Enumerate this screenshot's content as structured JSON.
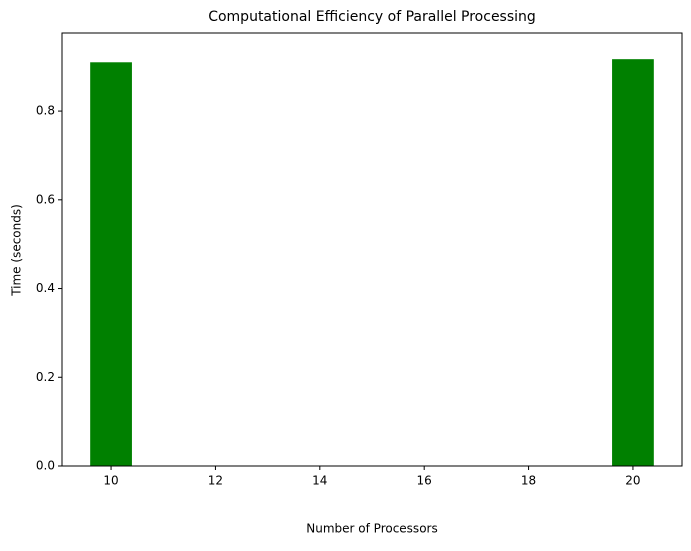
{
  "chart_data": {
    "type": "bar",
    "title": "Computational Efficiency of Parallel Processing",
    "x_label": "Number of Processors",
    "y_label": "Time (seconds)",
    "x": [
      10,
      20
    ],
    "values": [
      0.91,
      0.917
    ],
    "bar_width": 0.8,
    "color": "#008000",
    "xlim": [
      9.06,
      20.94
    ],
    "ylim": [
      0,
      0.976
    ],
    "xticks": [
      10,
      12,
      14,
      16,
      18,
      20
    ],
    "yticks": [
      {
        "value": 0,
        "label": "0.0"
      },
      {
        "value": 0.2,
        "label": "0.2"
      },
      {
        "value": 0.4,
        "label": "0.4"
      },
      {
        "value": 0.6,
        "label": "0.6"
      },
      {
        "value": 0.8,
        "label": "0.8"
      }
    ],
    "grid": false
  }
}
